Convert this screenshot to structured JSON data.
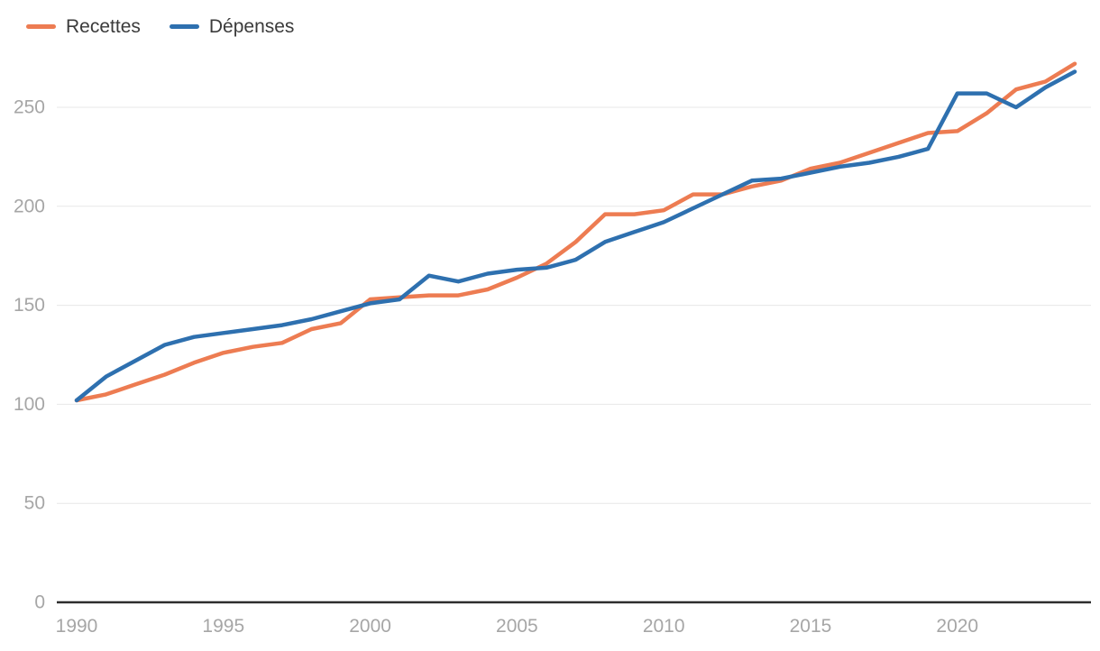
{
  "legend": {
    "items": [
      {
        "label": "Recettes"
      },
      {
        "label": "Dépenses"
      }
    ]
  },
  "chart_data": {
    "type": "line",
    "title": "",
    "xlabel": "",
    "ylabel": "",
    "x": [
      1990,
      1991,
      1992,
      1993,
      1994,
      1995,
      1996,
      1997,
      1998,
      1999,
      2000,
      2001,
      2002,
      2003,
      2004,
      2005,
      2006,
      2007,
      2008,
      2009,
      2010,
      2011,
      2012,
      2013,
      2014,
      2015,
      2016,
      2017,
      2018,
      2019,
      2020,
      2021,
      2022,
      2023,
      2024
    ],
    "series": [
      {
        "name": "Recettes",
        "color": "#ED7C52",
        "values": [
          102,
          105,
          110,
          115,
          121,
          126,
          129,
          131,
          138,
          141,
          153,
          154,
          155,
          155,
          158,
          164,
          171,
          182,
          196,
          196,
          198,
          206,
          206,
          210,
          213,
          219,
          222,
          227,
          232,
          237,
          238,
          247,
          259,
          263,
          272
        ]
      },
      {
        "name": "Dépenses",
        "color": "#2E70AF",
        "values": [
          102,
          114,
          122,
          130,
          134,
          136,
          138,
          140,
          143,
          147,
          151,
          153,
          165,
          162,
          166,
          168,
          169,
          173,
          182,
          187,
          192,
          199,
          206,
          213,
          214,
          217,
          220,
          222,
          225,
          229,
          257,
          257,
          250,
          260,
          268
        ]
      }
    ],
    "ylim": [
      0,
      275
    ],
    "yticks": [
      0,
      50,
      100,
      150,
      200,
      250
    ],
    "xticks": [
      1990,
      1995,
      2000,
      2005,
      2010,
      2015,
      2020
    ],
    "grid": true,
    "legend_position": "top-left"
  },
  "styles": {
    "background": "#ffffff",
    "grid_color": "#e7e7e7",
    "axis_color": "#2d2d2d",
    "tick_label_color": "#a6a6a6",
    "legend_text_color": "#3b3b3b"
  }
}
